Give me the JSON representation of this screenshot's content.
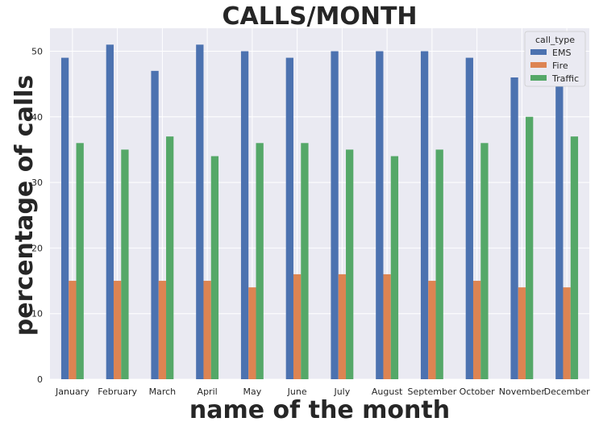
{
  "chart_data": {
    "type": "bar",
    "title": "CALLS/MONTH",
    "xlabel": "name of the month",
    "ylabel": "percentage of calls",
    "categories": [
      "January",
      "February",
      "March",
      "April",
      "May",
      "June",
      "July",
      "August",
      "September",
      "October",
      "November",
      "December"
    ],
    "series": [
      {
        "name": "EMS",
        "color": "#4c72b0",
        "values": [
          49,
          51,
          47,
          51,
          50,
          49,
          50,
          50,
          50,
          49,
          46,
          49
        ]
      },
      {
        "name": "Fire",
        "color": "#dd8452",
        "values": [
          15,
          15,
          15,
          15,
          14,
          16,
          16,
          16,
          15,
          15,
          14,
          14
        ]
      },
      {
        "name": "Traffic",
        "color": "#55a868",
        "values": [
          36,
          35,
          37,
          34,
          36,
          36,
          35,
          34,
          35,
          36,
          40,
          37
        ]
      }
    ],
    "ylim": [
      0,
      53.5
    ],
    "yticks": [
      0,
      10,
      20,
      30,
      40,
      50
    ],
    "grid": true,
    "legend": {
      "title": "call_type",
      "placement": "top-right"
    }
  }
}
